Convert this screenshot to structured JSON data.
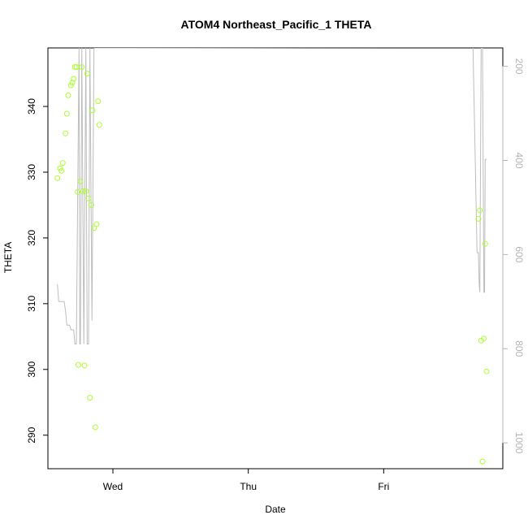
{
  "chart_data": {
    "type": "scatter",
    "title": "ATOM4 Northeast_Pacific_1 THETA",
    "xlabel": "Date",
    "ylabel": "THETA",
    "x_ticks": [
      "Wed",
      "Thu",
      "Fri"
    ],
    "x_tick_days": [
      1,
      2,
      3
    ],
    "xlim": [
      0.52,
      3.88
    ],
    "ylim": [
      284.9,
      348.9
    ],
    "y_ticks": [
      290,
      300,
      310,
      320,
      330,
      340
    ],
    "y2_ticks": [
      200,
      400,
      600,
      800,
      1000
    ],
    "y2lim": [
      1055,
      161
    ],
    "y2_reversed": true,
    "grid": false,
    "legend": "none",
    "colors": {
      "points": "#adff2f",
      "pressure_line": "#bdbdbd",
      "axis": "#000000",
      "right_axis": "#b4b4b4"
    },
    "series": [
      {
        "kind": "points",
        "points": [
          [
            0.59,
            329.1
          ],
          [
            0.61,
            330.6
          ],
          [
            0.62,
            330.2
          ],
          [
            0.63,
            331.4
          ],
          [
            0.65,
            335.9
          ],
          [
            0.66,
            338.9
          ],
          [
            0.67,
            341.7
          ],
          [
            0.69,
            343.2
          ],
          [
            0.7,
            343.6
          ],
          [
            0.71,
            344.2
          ],
          [
            0.72,
            346.0
          ],
          [
            0.73,
            346.0
          ],
          [
            0.74,
            327.0
          ],
          [
            0.745,
            300.7
          ],
          [
            0.76,
            328.6
          ],
          [
            0.77,
            346.0
          ],
          [
            0.78,
            327.1
          ],
          [
            0.79,
            300.6
          ],
          [
            0.8,
            327.1
          ],
          [
            0.81,
            345.0
          ],
          [
            0.82,
            326.0
          ],
          [
            0.83,
            295.7
          ],
          [
            0.84,
            325.0
          ],
          [
            0.85,
            339.4
          ],
          [
            0.86,
            321.5
          ],
          [
            0.87,
            291.2
          ],
          [
            0.88,
            322.1
          ],
          [
            0.89,
            340.8
          ],
          [
            0.9,
            337.2
          ],
          [
            3.7,
            322.9
          ],
          [
            3.71,
            324.2
          ],
          [
            3.72,
            304.4
          ],
          [
            3.73,
            286.0
          ],
          [
            3.74,
            304.7
          ],
          [
            3.75,
            319.1
          ],
          [
            3.76,
            299.7
          ]
        ]
      },
      {
        "kind": "line",
        "axis": "right",
        "points": [
          [
            0.59,
            663
          ],
          [
            0.6,
            700
          ],
          [
            0.62,
            700
          ],
          [
            0.63,
            700
          ],
          [
            0.64,
            700
          ],
          [
            0.65,
            720
          ],
          [
            0.66,
            750
          ],
          [
            0.68,
            750
          ],
          [
            0.69,
            760
          ],
          [
            0.71,
            760
          ],
          [
            0.72,
            790
          ],
          [
            0.73,
            790
          ],
          [
            0.75,
            161
          ],
          [
            0.755,
            790
          ],
          [
            0.76,
            790
          ],
          [
            0.77,
            161
          ],
          [
            0.785,
            790
          ],
          [
            0.8,
            161
          ],
          [
            0.81,
            790
          ],
          [
            0.82,
            790
          ],
          [
            0.83,
            161
          ],
          [
            0.845,
            740
          ],
          [
            0.86,
            161
          ],
          [
            0.875,
            161
          ],
          [
            0.88,
            161
          ],
          [
            0.885,
            161
          ],
          [
            0.89,
            161
          ],
          [
            0.9,
            161
          ],
          [
            0.905,
            161
          ],
          [
            0.91,
            161
          ],
          [
            0.92,
            161
          ],
          [
            0.93,
            161
          ],
          [
            0.94,
            161
          ],
          [
            0.95,
            161
          ],
          [
            0.96,
            161
          ],
          [
            0.97,
            161
          ],
          [
            0.98,
            161
          ],
          [
            0.99,
            161
          ],
          [
            1.0,
            161
          ],
          [
            1.01,
            161
          ],
          [
            1.02,
            161
          ],
          [
            1.03,
            161
          ],
          [
            1.04,
            161
          ],
          [
            1.05,
            161
          ],
          [
            1.06,
            161
          ],
          [
            1.07,
            161
          ],
          [
            1.08,
            161
          ],
          [
            1.09,
            161
          ],
          [
            1.1,
            161
          ],
          [
            3.66,
            160
          ],
          [
            3.69,
            596
          ],
          [
            3.7,
            596
          ],
          [
            3.705,
            660
          ],
          [
            3.71,
            680
          ],
          [
            3.72,
            161
          ],
          [
            3.73,
            161
          ],
          [
            3.74,
            680
          ],
          [
            3.745,
            680
          ],
          [
            3.75,
            398
          ],
          [
            3.76,
            398
          ]
        ]
      }
    ]
  }
}
